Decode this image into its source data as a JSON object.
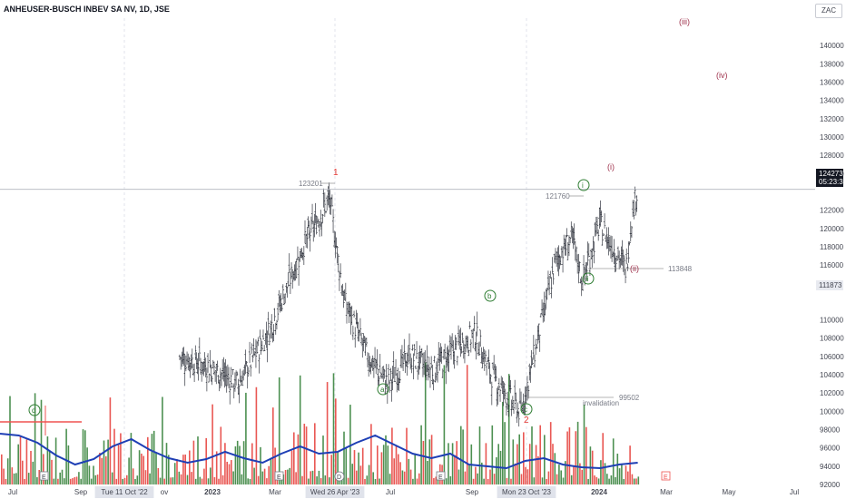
{
  "header": {
    "title": "ANHEUSER-BUSCH INBEV SA NV, 1D, JSE",
    "currency": "ZAC"
  },
  "price_axis": {
    "ticks": [
      "140000",
      "138000",
      "136000",
      "134000",
      "132000",
      "130000",
      "128000",
      "126000",
      "122000",
      "120000",
      "118000",
      "116000",
      "114000",
      "110000",
      "108000",
      "106000",
      "104000",
      "102000",
      "100000",
      "98000",
      "96000",
      "94000",
      "92000"
    ],
    "current_price": "124273",
    "countdown": "05:23:32",
    "marker_price": "111873"
  },
  "time_axis": {
    "labels": [
      "Jul",
      "Sep",
      "Tue 11 Oct '22",
      "ov",
      "2023",
      "Mar",
      "Wed 26 Apr '23",
      "Jul",
      "Sep",
      "Mon 23 Oct '23",
      "2024",
      "Mar",
      "May",
      "Jul"
    ]
  },
  "annotations": {
    "wave_1": "1",
    "wave_2": "2",
    "wave_a": "a",
    "wave_b": "b",
    "wave_c": "c",
    "wave_d": "d",
    "wave_i_circle": "i",
    "wave_ii_circle": "ii",
    "wave_i_paren": "(i)",
    "wave_ii_paren": "(ii)",
    "wave_iii_paren": "(iii)",
    "wave_iv_paren": "(iv)",
    "level_123201": "123201",
    "level_121760": "121760",
    "level_113848": "113848",
    "level_99502": "99502",
    "invalidation": "invalidation",
    "earnings_marker": "E",
    "dividend_marker": "D"
  },
  "colors": {
    "up": "#26a69a",
    "down": "#ef5350",
    "vol_up": "#2e7d32",
    "vol_down": "#e53935",
    "ma": "#1e3fb5",
    "wave_red": "#e53935",
    "wave_green": "#2e7d32",
    "wave_maroon": "#a0344e",
    "level_line": "#9e9e9e",
    "price_tag": "#131722"
  },
  "chart_data": {
    "type": "ohlc",
    "y_axis_range": [
      91000,
      143000
    ],
    "x_axis_range": [
      "2022-06-20",
      "2024-07-25"
    ],
    "current_price": 124273,
    "close_series": {
      "dates": [
        "2022-06-20",
        "2022-07-15",
        "2022-08-20",
        "2022-10-11",
        "2022-11-10",
        "2022-12-05",
        "2023-01-01",
        "2023-01-30",
        "2023-03-01",
        "2023-04-03",
        "2023-04-26",
        "2023-05-10",
        "2023-06-01",
        "2023-06-20",
        "2023-07-10",
        "2023-08-01",
        "2023-08-20",
        "2023-09-10",
        "2023-09-25",
        "2023-10-23",
        "2023-11-10",
        "2023-11-25",
        "2023-12-10",
        "2023-12-20",
        "2024-01-05",
        "2024-01-20",
        "2024-01-30",
        "2024-02-05",
        "2024-02-10"
      ],
      "values": [
        null,
        null,
        null,
        null,
        101500,
        106000,
        105000,
        103000,
        109000,
        118500,
        123201,
        112000,
        106000,
        103000,
        106000,
        104500,
        106500,
        108500,
        104000,
        99800,
        109000,
        116500,
        119000,
        114200,
        120500,
        117500,
        115500,
        122000,
        124273
      ]
    },
    "volume_ma_visible": true,
    "levels": [
      {
        "label": "123201",
        "value": 123201
      },
      {
        "label": "121760",
        "value": 121760
      },
      {
        "label": "113848",
        "value": 113848
      },
      {
        "label": "99502",
        "value": 99502
      }
    ],
    "wave_labels": [
      "1",
      "2",
      "a",
      "b",
      "c",
      "d",
      "i",
      "ii",
      "(i)",
      "(ii)",
      "(iii)",
      "(iv)"
    ],
    "grid": false
  }
}
